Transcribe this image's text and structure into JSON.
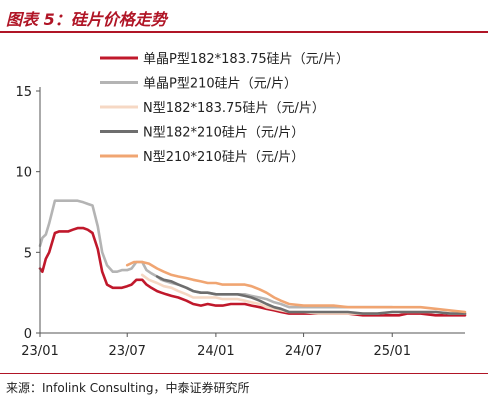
{
  "figure": {
    "title": "图表 5：硅片价格走势",
    "source": "来源：Infolink Consulting，中泰证券研究所"
  },
  "chart_data": {
    "type": "line",
    "title": "",
    "xlabel": "",
    "ylabel": "",
    "x_unit": "month",
    "x_domain": [
      "2023-01",
      "2025-06"
    ],
    "xticks": [
      {
        "label": "23/01",
        "date": "2023-01"
      },
      {
        "label": "23/07",
        "date": "2023-07"
      },
      {
        "label": "24/01",
        "date": "2024-01"
      },
      {
        "label": "24/07",
        "date": "2024-07"
      },
      {
        "label": "25/01",
        "date": "2025-01"
      }
    ],
    "ylim": [
      0,
      15
    ],
    "yticks": [
      0,
      5,
      10,
      15
    ],
    "grid": false,
    "legend_position": "top-center",
    "series": [
      {
        "name": "单晶P型182*183.75硅片（元/片）",
        "color": "#c0182b",
        "x": [
          "2023-01-01",
          "2023-01-06",
          "2023-01-13",
          "2023-01-20",
          "2023-02-01",
          "2023-02-10",
          "2023-02-20",
          "2023-03-01",
          "2023-03-10",
          "2023-03-20",
          "2023-04-01",
          "2023-04-10",
          "2023-04-20",
          "2023-05-01",
          "2023-05-10",
          "2023-05-20",
          "2023-06-01",
          "2023-06-10",
          "2023-06-20",
          "2023-07-01",
          "2023-07-10",
          "2023-07-20",
          "2023-08-01",
          "2023-08-10",
          "2023-08-20",
          "2023-09-01",
          "2023-09-10",
          "2023-09-20",
          "2023-10-01",
          "2023-10-15",
          "2023-11-01",
          "2023-11-15",
          "2023-12-01",
          "2023-12-15",
          "2024-01-01",
          "2024-01-15",
          "2024-02-01",
          "2024-02-15",
          "2024-03-01",
          "2024-03-15",
          "2024-04-01",
          "2024-04-15",
          "2024-05-01",
          "2024-05-15",
          "2024-06-01",
          "2024-07-01",
          "2024-08-01",
          "2024-09-01",
          "2024-10-01",
          "2024-11-01",
          "2024-12-01",
          "2025-01-01",
          "2025-01-15",
          "2025-02-01",
          "2025-03-01",
          "2025-04-01",
          "2025-05-01",
          "2025-06-01"
        ],
        "y": [
          4.0,
          3.8,
          4.6,
          5.0,
          6.2,
          6.3,
          6.3,
          6.3,
          6.4,
          6.5,
          6.5,
          6.4,
          6.2,
          5.2,
          3.8,
          3.0,
          2.8,
          2.8,
          2.8,
          2.9,
          3.0,
          3.3,
          3.3,
          3.0,
          2.8,
          2.6,
          2.5,
          2.4,
          2.3,
          2.2,
          2.0,
          1.8,
          1.7,
          1.8,
          1.7,
          1.7,
          1.8,
          1.8,
          1.8,
          1.7,
          1.6,
          1.5,
          1.4,
          1.3,
          1.2,
          1.2,
          1.2,
          1.2,
          1.2,
          1.1,
          1.1,
          1.1,
          1.1,
          1.2,
          1.2,
          1.1,
          1.1,
          1.1
        ]
      },
      {
        "name": "单晶P型210硅片（元/片）",
        "color": "#b4b4b4",
        "x": [
          "2023-01-01",
          "2023-01-06",
          "2023-01-13",
          "2023-01-20",
          "2023-02-01",
          "2023-02-10",
          "2023-02-20",
          "2023-03-01",
          "2023-03-10",
          "2023-03-20",
          "2023-04-01",
          "2023-04-10",
          "2023-04-20",
          "2023-05-01",
          "2023-05-10",
          "2023-05-20",
          "2023-06-01",
          "2023-06-10",
          "2023-06-20",
          "2023-07-01",
          "2023-07-10",
          "2023-07-20",
          "2023-08-01",
          "2023-08-10",
          "2023-08-20",
          "2023-09-01",
          "2023-09-10",
          "2023-09-20",
          "2023-10-01",
          "2023-10-15",
          "2023-11-01",
          "2023-11-15",
          "2023-12-01",
          "2023-12-15",
          "2024-01-01",
          "2024-01-15",
          "2024-02-01",
          "2024-02-15",
          "2024-03-01",
          "2024-03-15",
          "2024-04-01",
          "2024-04-15",
          "2024-05-01",
          "2024-05-15",
          "2024-06-01",
          "2024-07-01",
          "2024-08-01",
          "2024-09-01",
          "2024-10-01",
          "2024-11-01",
          "2024-12-01",
          "2025-01-01"
        ],
        "y": [
          5.4,
          5.9,
          6.1,
          6.8,
          8.2,
          8.2,
          8.2,
          8.2,
          8.2,
          8.2,
          8.1,
          8.0,
          7.9,
          6.6,
          5.0,
          4.2,
          3.8,
          3.8,
          3.9,
          3.9,
          4.0,
          4.4,
          4.4,
          3.9,
          3.7,
          3.5,
          3.3,
          3.2,
          3.1,
          3.0,
          2.8,
          2.6,
          2.5,
          2.5,
          2.4,
          2.4,
          2.4,
          2.4,
          2.4,
          2.3,
          2.2,
          2.1,
          1.9,
          1.8,
          1.6,
          1.6,
          1.6,
          1.6,
          1.6,
          1.6,
          1.6,
          1.6
        ]
      },
      {
        "name": "N型182*183.75硅片（元/片）",
        "color": "#f6d8c4",
        "x": [
          "2023-08-01",
          "2023-08-15",
          "2023-09-01",
          "2023-09-15",
          "2023-10-01",
          "2023-10-15",
          "2023-11-01",
          "2023-11-15",
          "2023-12-01",
          "2023-12-15",
          "2024-01-01",
          "2024-01-15",
          "2024-02-01",
          "2024-02-15",
          "2024-03-01",
          "2024-03-15",
          "2024-04-01",
          "2024-04-15",
          "2024-05-01",
          "2024-05-15",
          "2024-06-01",
          "2024-07-01",
          "2024-08-01",
          "2024-09-01",
          "2024-10-01",
          "2024-11-01",
          "2024-12-01",
          "2025-01-01",
          "2025-02-01",
          "2025-03-01",
          "2025-04-01",
          "2025-05-01",
          "2025-06-01"
        ],
        "y": [
          3.6,
          3.3,
          3.1,
          2.9,
          2.8,
          2.6,
          2.4,
          2.2,
          2.2,
          2.2,
          2.2,
          2.1,
          2.1,
          2.1,
          2.0,
          1.9,
          1.8,
          1.6,
          1.5,
          1.4,
          1.3,
          1.3,
          1.2,
          1.2,
          1.2,
          1.2,
          1.2,
          1.3,
          1.3,
          1.3,
          1.3,
          1.2,
          1.2
        ]
      },
      {
        "name": "N型182*210硅片（元/片）",
        "color": "#6e6e6e",
        "x": [
          "2023-09-01",
          "2023-09-15",
          "2023-10-01",
          "2023-10-15",
          "2023-11-01",
          "2023-11-15",
          "2023-12-01",
          "2023-12-15",
          "2024-01-01",
          "2024-01-15",
          "2024-02-01",
          "2024-02-15",
          "2024-03-01",
          "2024-03-15",
          "2024-04-01",
          "2024-04-15",
          "2024-05-01",
          "2024-05-15",
          "2024-06-01",
          "2024-07-01",
          "2024-08-01",
          "2024-09-01",
          "2024-10-01",
          "2024-11-01",
          "2024-12-01",
          "2025-01-01",
          "2025-01-15",
          "2025-02-01",
          "2025-03-01",
          "2025-04-01",
          "2025-05-01",
          "2025-06-01"
        ],
        "y": [
          3.5,
          3.3,
          3.2,
          3.0,
          2.8,
          2.6,
          2.5,
          2.5,
          2.4,
          2.4,
          2.4,
          2.4,
          2.3,
          2.2,
          2.0,
          1.8,
          1.6,
          1.5,
          1.3,
          1.3,
          1.3,
          1.3,
          1.3,
          1.2,
          1.2,
          1.3,
          1.3,
          1.3,
          1.3,
          1.3,
          1.2,
          1.2
        ]
      },
      {
        "name": "N型210*210硅片（元/片）",
        "color": "#f0a572",
        "x": [
          "2023-07-01",
          "2023-07-15",
          "2023-08-01",
          "2023-08-15",
          "2023-09-01",
          "2023-09-15",
          "2023-10-01",
          "2023-10-15",
          "2023-11-01",
          "2023-11-15",
          "2023-12-01",
          "2023-12-15",
          "2024-01-01",
          "2024-01-15",
          "2024-02-01",
          "2024-02-15",
          "2024-03-01",
          "2024-03-15",
          "2024-04-01",
          "2024-04-15",
          "2024-05-01",
          "2024-05-15",
          "2024-06-01",
          "2024-07-01",
          "2024-08-01",
          "2024-09-01",
          "2024-10-01",
          "2024-11-01",
          "2024-12-01",
          "2025-01-01",
          "2025-01-15",
          "2025-02-01",
          "2025-03-01",
          "2025-04-01",
          "2025-05-01",
          "2025-06-01"
        ],
        "y": [
          4.2,
          4.4,
          4.4,
          4.3,
          4.0,
          3.8,
          3.6,
          3.5,
          3.4,
          3.3,
          3.2,
          3.1,
          3.1,
          3.0,
          3.0,
          3.0,
          3.0,
          2.9,
          2.7,
          2.5,
          2.2,
          2.0,
          1.8,
          1.7,
          1.7,
          1.7,
          1.6,
          1.6,
          1.6,
          1.6,
          1.6,
          1.6,
          1.6,
          1.5,
          1.4,
          1.3
        ]
      }
    ]
  }
}
